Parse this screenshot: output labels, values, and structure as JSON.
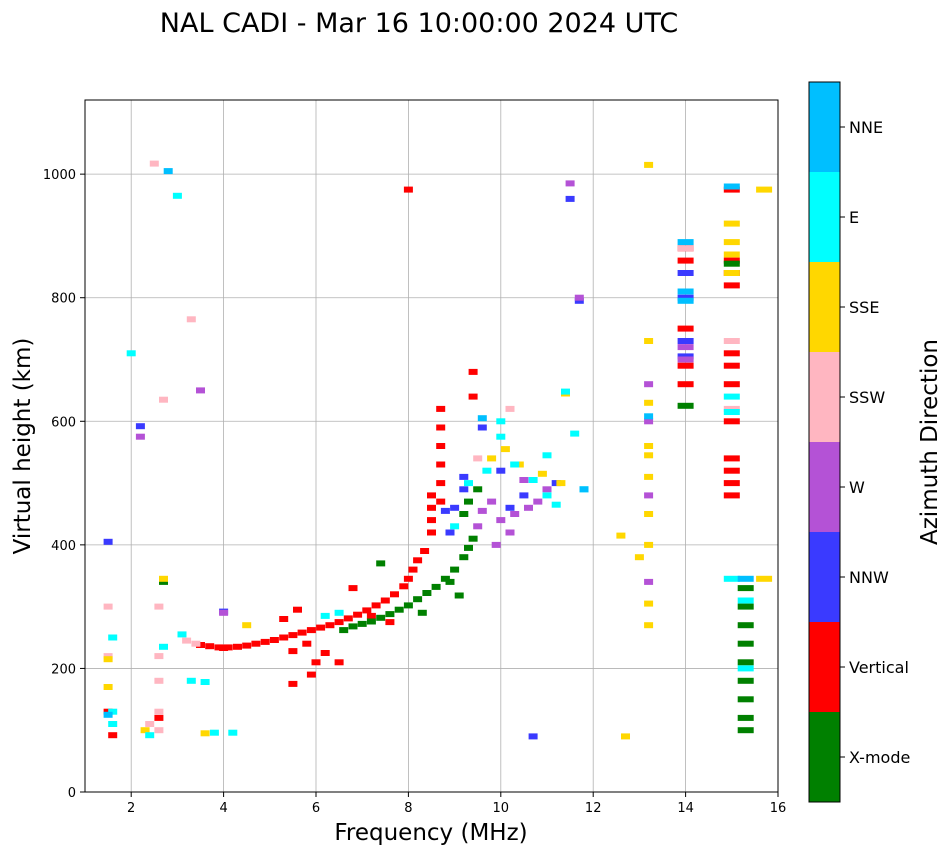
{
  "chart_data": {
    "type": "scatter",
    "title": "NAL CADI - Mar 16 10:00:00 2024 UTC",
    "xlabel": "Frequency (MHz)",
    "ylabel": "Virtual height (km)",
    "xlim": [
      1,
      16
    ],
    "ylim": [
      0,
      1120
    ],
    "x_ticks": [
      2,
      4,
      6,
      8,
      10,
      12,
      14,
      16
    ],
    "y_ticks": [
      0,
      200,
      400,
      600,
      800,
      1000
    ],
    "grid": true,
    "colorbar": {
      "label": "Azimuth Direction",
      "categories": [
        {
          "name": "X-mode",
          "color": "#008000"
        },
        {
          "name": "Vertical",
          "color": "#ff0000"
        },
        {
          "name": "NNW",
          "color": "#3a3aff"
        },
        {
          "name": "W",
          "color": "#b452d6"
        },
        {
          "name": "SSW",
          "color": "#ffb6c1"
        },
        {
          "name": "SSE",
          "color": "#ffd700"
        },
        {
          "name": "E",
          "color": "#00ffff"
        },
        {
          "name": "NNE",
          "color": "#00bfff"
        }
      ]
    },
    "series": [
      {
        "name": "Vertical",
        "points": [
          [
            3.5,
            238
          ],
          [
            3.7,
            236
          ],
          [
            3.9,
            234
          ],
          [
            4.0,
            233
          ],
          [
            4.1,
            234
          ],
          [
            4.3,
            235
          ],
          [
            4.5,
            237
          ],
          [
            4.7,
            240
          ],
          [
            4.9,
            243
          ],
          [
            5.1,
            246
          ],
          [
            5.3,
            250
          ],
          [
            5.5,
            254
          ],
          [
            5.7,
            258
          ],
          [
            5.9,
            262
          ],
          [
            6.1,
            266
          ],
          [
            6.3,
            270
          ],
          [
            6.5,
            275
          ],
          [
            6.7,
            281
          ],
          [
            6.9,
            287
          ],
          [
            7.1,
            294
          ],
          [
            7.3,
            302
          ],
          [
            7.5,
            310
          ],
          [
            7.7,
            320
          ],
          [
            7.9,
            333
          ],
          [
            8.0,
            345
          ],
          [
            8.1,
            360
          ],
          [
            8.2,
            375
          ],
          [
            8.35,
            390
          ],
          [
            8.5,
            420
          ],
          [
            8.5,
            440
          ],
          [
            8.5,
            460
          ],
          [
            8.5,
            480
          ],
          [
            8.7,
            470
          ],
          [
            8.7,
            500
          ],
          [
            8.7,
            530
          ],
          [
            8.7,
            560
          ],
          [
            8.7,
            590
          ],
          [
            8.7,
            620
          ],
          [
            9.4,
            640
          ],
          [
            9.4,
            680
          ],
          [
            8.0,
            975
          ],
          [
            14.0,
            660
          ],
          [
            14.0,
            690
          ],
          [
            14.0,
            750
          ],
          [
            14.0,
            860
          ],
          [
            14.0,
            880
          ],
          [
            15.0,
            480
          ],
          [
            15.0,
            500
          ],
          [
            15.0,
            520
          ],
          [
            15.0,
            540
          ],
          [
            15.0,
            600
          ],
          [
            15.0,
            660
          ],
          [
            15.0,
            690
          ],
          [
            15.0,
            710
          ],
          [
            15.0,
            820
          ],
          [
            15.0,
            840
          ],
          [
            15.0,
            860
          ],
          [
            15.0,
            975
          ],
          [
            5.5,
            175
          ],
          [
            5.9,
            190
          ],
          [
            6.0,
            210
          ],
          [
            5.5,
            228
          ],
          [
            6.5,
            210
          ],
          [
            6.2,
            225
          ],
          [
            5.3,
            280
          ],
          [
            5.6,
            295
          ],
          [
            5.8,
            240
          ],
          [
            6.8,
            330
          ],
          [
            7.2,
            285
          ],
          [
            7.6,
            275
          ],
          [
            1.6,
            92
          ],
          [
            1.5,
            130
          ],
          [
            2.6,
            120
          ]
        ]
      },
      {
        "name": "X-mode",
        "points": [
          [
            6.6,
            262
          ],
          [
            6.8,
            268
          ],
          [
            7.0,
            272
          ],
          [
            7.2,
            276
          ],
          [
            7.4,
            282
          ],
          [
            7.6,
            288
          ],
          [
            7.8,
            295
          ],
          [
            8.0,
            302
          ],
          [
            8.2,
            312
          ],
          [
            8.4,
            322
          ],
          [
            8.6,
            332
          ],
          [
            8.8,
            345
          ],
          [
            9.0,
            360
          ],
          [
            9.2,
            380
          ],
          [
            9.3,
            395
          ],
          [
            9.4,
            410
          ],
          [
            8.9,
            340
          ],
          [
            9.1,
            318
          ],
          [
            8.3,
            290
          ],
          [
            9.3,
            470
          ],
          [
            9.2,
            450
          ],
          [
            9.5,
            490
          ],
          [
            7.4,
            370
          ],
          [
            15.3,
            100
          ],
          [
            15.3,
            120
          ],
          [
            15.3,
            150
          ],
          [
            15.3,
            180
          ],
          [
            15.3,
            210
          ],
          [
            15.3,
            240
          ],
          [
            15.3,
            270
          ],
          [
            15.3,
            300
          ],
          [
            15.3,
            330
          ],
          [
            14.0,
            625
          ],
          [
            15.0,
            855
          ],
          [
            2.7,
            340
          ]
        ]
      },
      {
        "name": "NNW",
        "points": [
          [
            9.2,
            490
          ],
          [
            9.2,
            510
          ],
          [
            9.0,
            460
          ],
          [
            10.2,
            460
          ],
          [
            10.5,
            480
          ],
          [
            11.2,
            500
          ],
          [
            9.6,
            590
          ],
          [
            10.0,
            520
          ],
          [
            10.7,
            90
          ],
          [
            11.5,
            960
          ],
          [
            14.0,
            800
          ],
          [
            14.0,
            730
          ],
          [
            14.0,
            705
          ],
          [
            14.0,
            840
          ],
          [
            11.7,
            795
          ],
          [
            1.5,
            405
          ],
          [
            2.2,
            592
          ],
          [
            4.0,
            292
          ],
          [
            8.8,
            455
          ],
          [
            8.9,
            420
          ]
        ]
      },
      {
        "name": "W",
        "points": [
          [
            9.6,
            455
          ],
          [
            9.8,
            470
          ],
          [
            10.0,
            440
          ],
          [
            10.3,
            450
          ],
          [
            10.6,
            460
          ],
          [
            10.8,
            470
          ],
          [
            10.5,
            505
          ],
          [
            9.5,
            430
          ],
          [
            11.0,
            490
          ],
          [
            10.2,
            420
          ],
          [
            9.9,
            400
          ],
          [
            13.2,
            340
          ],
          [
            13.2,
            480
          ],
          [
            13.2,
            600
          ],
          [
            13.2,
            660
          ],
          [
            14.0,
            700
          ],
          [
            14.0,
            720
          ],
          [
            11.7,
            800
          ],
          [
            11.5,
            985
          ],
          [
            3.5,
            650
          ],
          [
            2.2,
            575
          ],
          [
            4.0,
            290
          ]
        ]
      },
      {
        "name": "SSW",
        "points": [
          [
            2.6,
            100
          ],
          [
            2.6,
            130
          ],
          [
            2.6,
            180
          ],
          [
            2.6,
            220
          ],
          [
            2.6,
            300
          ],
          [
            3.2,
            245
          ],
          [
            3.4,
            240
          ],
          [
            1.5,
            300
          ],
          [
            1.5,
            220
          ],
          [
            2.4,
            110
          ],
          [
            10.2,
            620
          ],
          [
            9.5,
            540
          ],
          [
            14.0,
            880
          ],
          [
            15.0,
            620
          ],
          [
            15.0,
            730
          ],
          [
            2.7,
            635
          ],
          [
            3.3,
            765
          ],
          [
            2.5,
            1017
          ]
        ]
      },
      {
        "name": "SSE",
        "points": [
          [
            9.8,
            540
          ],
          [
            10.1,
            555
          ],
          [
            10.4,
            530
          ],
          [
            10.9,
            515
          ],
          [
            11.3,
            500
          ],
          [
            12.7,
            90
          ],
          [
            12.6,
            415
          ],
          [
            13.0,
            380
          ],
          [
            13.2,
            270
          ],
          [
            13.2,
            305
          ],
          [
            13.2,
            400
          ],
          [
            13.2,
            450
          ],
          [
            13.2,
            510
          ],
          [
            13.2,
            545
          ],
          [
            13.2,
            560
          ],
          [
            13.2,
            630
          ],
          [
            13.2,
            730
          ],
          [
            13.2,
            1015
          ],
          [
            15.0,
            840
          ],
          [
            15.0,
            870
          ],
          [
            15.0,
            890
          ],
          [
            15.0,
            920
          ],
          [
            15.7,
            975
          ],
          [
            15.7,
            345
          ],
          [
            11.4,
            645
          ],
          [
            2.7,
            345
          ],
          [
            1.5,
            170
          ],
          [
            1.5,
            215
          ],
          [
            4.5,
            270
          ],
          [
            3.6,
            95
          ],
          [
            2.3,
            100
          ]
        ]
      },
      {
        "name": "E",
        "points": [
          [
            9.0,
            430
          ],
          [
            9.3,
            500
          ],
          [
            9.7,
            520
          ],
          [
            10.0,
            575
          ],
          [
            10.3,
            530
          ],
          [
            10.7,
            505
          ],
          [
            11.0,
            480
          ],
          [
            11.2,
            465
          ],
          [
            11.8,
            490
          ],
          [
            10.0,
            600
          ],
          [
            11.0,
            545
          ],
          [
            11.6,
            580
          ],
          [
            11.4,
            648
          ],
          [
            15.0,
            345
          ],
          [
            15.3,
            310
          ],
          [
            15.3,
            200
          ],
          [
            15.0,
            615
          ],
          [
            15.0,
            640
          ],
          [
            3.8,
            96
          ],
          [
            3.1,
            255
          ],
          [
            4.2,
            96
          ],
          [
            2.4,
            92
          ],
          [
            1.6,
            110
          ],
          [
            1.6,
            250
          ],
          [
            2.7,
            235
          ],
          [
            3.3,
            180
          ],
          [
            3.0,
            965
          ],
          [
            2.0,
            710
          ],
          [
            6.2,
            285
          ],
          [
            6.5,
            290
          ],
          [
            1.6,
            130
          ],
          [
            3.6,
            178
          ]
        ]
      },
      {
        "name": "NNE",
        "points": [
          [
            9.6,
            605
          ],
          [
            14.0,
            890
          ],
          [
            14.0,
            810
          ],
          [
            14.0,
            795
          ],
          [
            15.0,
            980
          ],
          [
            15.3,
            345
          ],
          [
            2.8,
            1005
          ],
          [
            11.8,
            490
          ],
          [
            1.5,
            125
          ],
          [
            13.2,
            608
          ]
        ]
      }
    ]
  }
}
